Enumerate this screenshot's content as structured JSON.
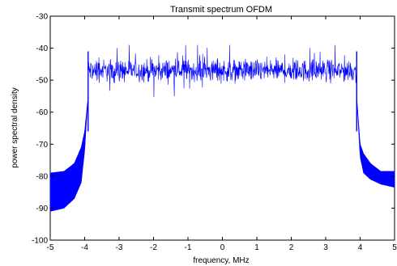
{
  "chart_data": {
    "type": "line",
    "title": "Transmit spectrum OFDM",
    "xlabel": "frequency, MHz",
    "ylabel": "power spectral density",
    "xlim": [
      -5,
      5
    ],
    "ylim": [
      -100,
      -30
    ],
    "x_ticks": [
      -5,
      -4,
      -3,
      -2,
      -1,
      0,
      1,
      2,
      3,
      4,
      5
    ],
    "y_ticks": [
      -100,
      -90,
      -80,
      -70,
      -60,
      -50,
      -40,
      -30
    ],
    "x_tick_labels": [
      "-5",
      "-4",
      "-3",
      "-2",
      "-1",
      "0",
      "1",
      "2",
      "3",
      "4",
      "5"
    ],
    "y_tick_labels": [
      "-100",
      "-90",
      "-80",
      "-70",
      "-60",
      "-50",
      "-40",
      "-30"
    ],
    "grid": false,
    "line_color": "#0000ff",
    "series": [
      {
        "passband": {
          "x_range": [
            -3.9,
            3.9
          ],
          "level_mean": -47,
          "level_min": -55,
          "level_max": -39
        },
        "left_skirt": {
          "upper_envelope": [
            [
              -5,
              -79
            ],
            [
              -4.6,
              -78.5
            ],
            [
              -4.3,
              -76
            ],
            [
              -4.1,
              -71
            ],
            [
              -4.0,
              -66
            ],
            [
              -3.9,
              -55
            ]
          ],
          "lower_envelope": [
            [
              -5,
              -91
            ],
            [
              -4.6,
              -90
            ],
            [
              -4.3,
              -87
            ],
            [
              -4.1,
              -82
            ],
            [
              -4.0,
              -72
            ],
            [
              -3.9,
              -55
            ]
          ]
        },
        "right_skirt": {
          "upper_envelope": [
            [
              3.9,
              -55
            ],
            [
              4.0,
              -70
            ],
            [
              4.1,
              -73
            ],
            [
              4.3,
              -76
            ],
            [
              4.6,
              -78.5
            ],
            [
              5,
              -78.5
            ]
          ],
          "lower_envelope": [
            [
              3.9,
              -55
            ],
            [
              4.0,
              -74
            ],
            [
              4.1,
              -79
            ],
            [
              4.3,
              -81
            ],
            [
              4.6,
              -82.5
            ],
            [
              5,
              -83.5
            ]
          ]
        }
      }
    ]
  }
}
